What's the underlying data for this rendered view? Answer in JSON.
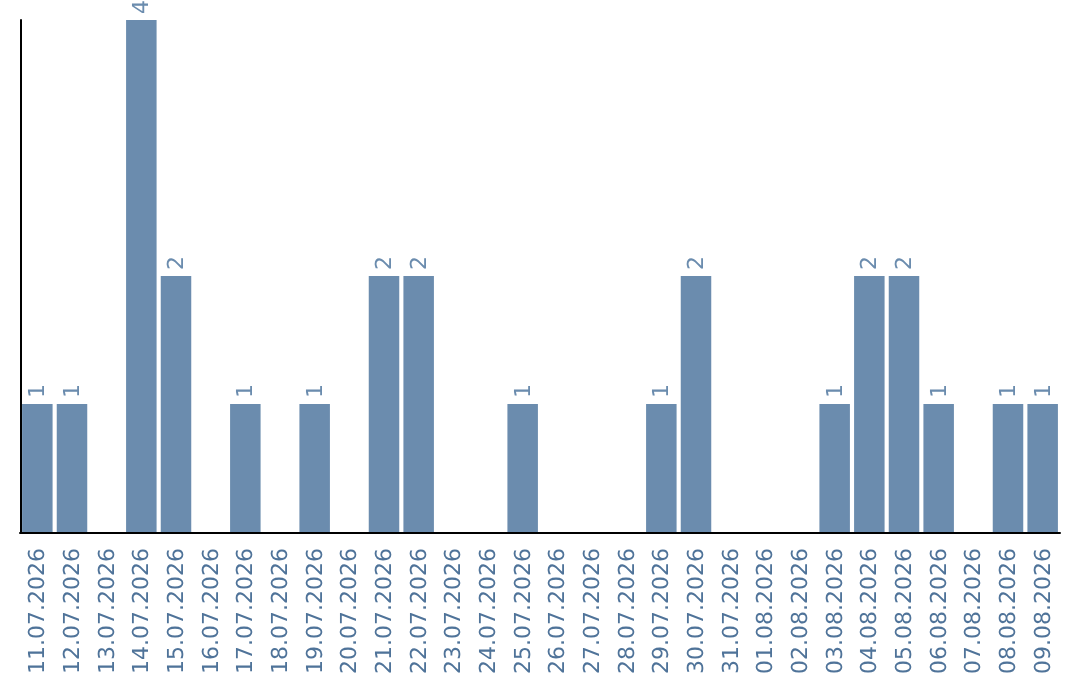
{
  "chart_data": {
    "type": "bar",
    "categories": [
      "11.07.2026",
      "12.07.2026",
      "13.07.2026",
      "14.07.2026",
      "15.07.2026",
      "16.07.2026",
      "17.07.2026",
      "18.07.2026",
      "19.07.2026",
      "20.07.2026",
      "21.07.2026",
      "22.07.2026",
      "23.07.2026",
      "24.07.2026",
      "25.07.2026",
      "26.07.2026",
      "27.07.2026",
      "28.07.2026",
      "29.07.2026",
      "30.07.2026",
      "31.07.2026",
      "01.08.2026",
      "02.08.2026",
      "03.08.2026",
      "04.08.2026",
      "05.08.2026",
      "06.08.2026",
      "07.08.2026",
      "08.08.2026",
      "09.08.2026"
    ],
    "values": [
      1,
      1,
      0,
      4,
      2,
      0,
      1,
      0,
      1,
      0,
      2,
      2,
      0,
      0,
      1,
      0,
      0,
      0,
      1,
      2,
      0,
      0,
      0,
      1,
      2,
      2,
      1,
      0,
      1,
      1
    ],
    "value_labels": [
      "1",
      "1",
      null,
      "4",
      "2",
      null,
      "1",
      null,
      "1",
      null,
      "2",
      "2",
      null,
      null,
      "1",
      null,
      null,
      null,
      "1",
      "2",
      null,
      null,
      null,
      "1",
      "2",
      "2",
      "1",
      null,
      "1",
      "1"
    ],
    "color": "#6b8cae",
    "tick_labels": "x"
  }
}
